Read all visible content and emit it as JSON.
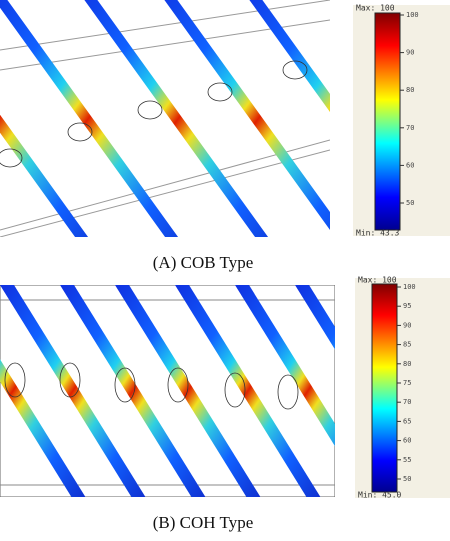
{
  "figure_a": {
    "caption": "(A)  COB  Type",
    "colorbar": {
      "max": "Max: 100",
      "min": "Min: 43.3",
      "ticks": [
        "100",
        "90",
        "80",
        "70",
        "60",
        "50"
      ]
    }
  },
  "figure_b": {
    "caption": "(B)  COH  Type",
    "colorbar": {
      "max": "Max: 100",
      "min": "Min: 45.0",
      "ticks": [
        "100",
        "95",
        "90",
        "85",
        "80",
        "75",
        "70",
        "65",
        "60",
        "55",
        "50"
      ]
    }
  }
}
